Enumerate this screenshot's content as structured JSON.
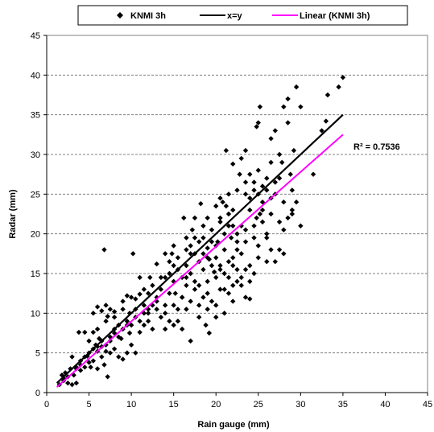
{
  "chart_data": {
    "type": "scatter",
    "xlabel": "Rain gauge (mm)",
    "ylabel": "Radar (mm)",
    "xlim": [
      0,
      45
    ],
    "ylim": [
      0,
      45
    ],
    "xticks": [
      "0",
      "5",
      "10",
      "15",
      "20",
      "25",
      "30",
      "35",
      "40",
      "45"
    ],
    "yticks": [
      "0",
      "5",
      "10",
      "15",
      "20",
      "25",
      "30",
      "35",
      "40",
      "45"
    ],
    "grid": "horizontal dashed",
    "legend_position": "top",
    "annotation": "R² = 0.7536",
    "colors": {
      "points": "#000000",
      "identity": "#000000",
      "fit": "#ff00ff"
    },
    "series": [
      {
        "name": "KNMI 3h",
        "kind": "scatter",
        "marker": "diamond",
        "points": [
          [
            1.5,
            1.0
          ],
          [
            2.0,
            1.5
          ],
          [
            2.5,
            1.2
          ],
          [
            3.0,
            1.0
          ],
          [
            3.2,
            2.2
          ],
          [
            2.8,
            3.0
          ],
          [
            3.5,
            1.2
          ],
          [
            2.2,
            2.5
          ],
          [
            3.0,
            4.5
          ],
          [
            3.5,
            3.2
          ],
          [
            4.0,
            3.5
          ],
          [
            4.5,
            3.2
          ],
          [
            4.0,
            2.8
          ],
          [
            5.0,
            3.8
          ],
          [
            4.8,
            4.6
          ],
          [
            5.5,
            4.0
          ],
          [
            5.2,
            3.2
          ],
          [
            3.8,
            7.6
          ],
          [
            4.5,
            7.6
          ],
          [
            5.5,
            7.6
          ],
          [
            6.0,
            3.0
          ],
          [
            6.5,
            4.5
          ],
          [
            6.0,
            5.2
          ],
          [
            7.0,
            5.2
          ],
          [
            7.5,
            5.0
          ],
          [
            7.2,
            2.0
          ],
          [
            6.8,
            3.5
          ],
          [
            6.2,
            6.8
          ],
          [
            6.5,
            5.8
          ],
          [
            5.8,
            6.0
          ],
          [
            8.0,
            5.5
          ],
          [
            8.5,
            4.5
          ],
          [
            9.0,
            4.2
          ],
          [
            8.8,
            6.8
          ],
          [
            9.5,
            5.0
          ],
          [
            10.0,
            6.0
          ],
          [
            9.8,
            7.5
          ],
          [
            10.5,
            5.0
          ],
          [
            11.0,
            7.6
          ],
          [
            7.5,
            7.0
          ],
          [
            8.0,
            7.5
          ],
          [
            8.5,
            8.5
          ],
          [
            5.5,
            10.0
          ],
          [
            6.0,
            10.8
          ],
          [
            6.5,
            10.3
          ],
          [
            7.0,
            11.0
          ],
          [
            7.5,
            10.5
          ],
          [
            8.0,
            10.2
          ],
          [
            7.2,
            9.6
          ],
          [
            6.8,
            18.0
          ],
          [
            9.0,
            11.5
          ],
          [
            9.5,
            12.2
          ],
          [
            10.0,
            12.0
          ],
          [
            9.8,
            10.0
          ],
          [
            10.5,
            11.8
          ],
          [
            11.0,
            12.4
          ],
          [
            10.2,
            17.5
          ],
          [
            11.5,
            11.0
          ],
          [
            12.0,
            10.5
          ],
          [
            12.5,
            11.0
          ],
          [
            13.0,
            12.0
          ],
          [
            13.5,
            13.0
          ],
          [
            12.2,
            14.5
          ],
          [
            13.0,
            16.2
          ],
          [
            14.0,
            14.5
          ],
          [
            14.5,
            15.0
          ],
          [
            15.0,
            14.0
          ],
          [
            14.8,
            17.5
          ],
          [
            15.5,
            15.5
          ],
          [
            16.0,
            14.5
          ],
          [
            16.5,
            13.5
          ],
          [
            15.2,
            12.5
          ],
          [
            16.0,
            12.0
          ],
          [
            16.5,
            16.0
          ],
          [
            16.2,
            22.0
          ],
          [
            17.0,
            18.5
          ],
          [
            17.5,
            17.5
          ],
          [
            18.0,
            16.5
          ],
          [
            17.2,
            20.5
          ],
          [
            18.5,
            19.5
          ],
          [
            17.5,
            22.0
          ],
          [
            18.2,
            23.8
          ],
          [
            19.0,
            18.2
          ],
          [
            19.5,
            20.5
          ],
          [
            20.0,
            17.0
          ],
          [
            20.5,
            16.0
          ],
          [
            19.2,
            16.8
          ],
          [
            19.8,
            15.2
          ],
          [
            20.2,
            19.0
          ],
          [
            21.0,
            20.0
          ],
          [
            20.5,
            22.0
          ],
          [
            20.8,
            24.0
          ],
          [
            21.2,
            23.5
          ],
          [
            21.5,
            22.5
          ],
          [
            22.0,
            21.0
          ],
          [
            21.8,
            19.5
          ],
          [
            22.5,
            18.0
          ],
          [
            22.0,
            17.0
          ],
          [
            21.5,
            16.5
          ],
          [
            22.5,
            15.5
          ],
          [
            23.0,
            17.5
          ],
          [
            21.2,
            30.5
          ],
          [
            22.0,
            28.8
          ],
          [
            22.8,
            27.5
          ],
          [
            23.0,
            29.5
          ],
          [
            23.5,
            30.5
          ],
          [
            24.0,
            27.5
          ],
          [
            24.5,
            26.5
          ],
          [
            23.5,
            25.0
          ],
          [
            24.0,
            23.0
          ],
          [
            24.8,
            22.0
          ],
          [
            25.0,
            25.0
          ],
          [
            25.5,
            24.0
          ],
          [
            26.0,
            25.5
          ],
          [
            25.2,
            22.5
          ],
          [
            26.5,
            24.5
          ],
          [
            27.0,
            26.5
          ],
          [
            27.5,
            27.0
          ],
          [
            26.0,
            20.0
          ],
          [
            25.0,
            18.5
          ],
          [
            26.5,
            18.0
          ],
          [
            27.0,
            16.5
          ],
          [
            27.5,
            21.5
          ],
          [
            28.0,
            20.5
          ],
          [
            28.5,
            22.0
          ],
          [
            29.0,
            23.0
          ],
          [
            27.5,
            18.0
          ],
          [
            28.0,
            17.5
          ],
          [
            24.8,
            33.5
          ],
          [
            25.0,
            34.0
          ],
          [
            25.2,
            36.0
          ],
          [
            26.5,
            32.0
          ],
          [
            27.0,
            33.0
          ],
          [
            27.5,
            30.0
          ],
          [
            28.0,
            36.0
          ],
          [
            28.5,
            37.0
          ],
          [
            29.5,
            38.5
          ],
          [
            30.0,
            36.0
          ],
          [
            28.5,
            34.0
          ],
          [
            29.2,
            30.5
          ],
          [
            27.8,
            29.0
          ],
          [
            28.8,
            27.5
          ],
          [
            31.5,
            27.5
          ],
          [
            32.5,
            33.0
          ],
          [
            33.0,
            34.2
          ],
          [
            33.2,
            37.5
          ],
          [
            34.5,
            38.5
          ],
          [
            35.0,
            39.7
          ],
          [
            30.0,
            21.0
          ],
          [
            29.0,
            22.5
          ],
          [
            12.0,
            9.0
          ],
          [
            12.5,
            8.0
          ],
          [
            13.5,
            9.5
          ],
          [
            14.0,
            8.0
          ],
          [
            14.5,
            9.0
          ],
          [
            15.0,
            8.5
          ],
          [
            15.5,
            9.0
          ],
          [
            16.0,
            8.0
          ],
          [
            17.0,
            6.5
          ],
          [
            16.5,
            10.5
          ],
          [
            15.5,
            10.5
          ],
          [
            18.0,
            9.5
          ],
          [
            18.5,
            12.0
          ],
          [
            19.0,
            12.5
          ],
          [
            19.5,
            11.5
          ],
          [
            18.8,
            8.5
          ],
          [
            19.2,
            7.5
          ],
          [
            20.0,
            9.5
          ],
          [
            21.0,
            10.0
          ],
          [
            21.5,
            12.5
          ],
          [
            22.0,
            11.5
          ],
          [
            20.5,
            13.0
          ],
          [
            21.5,
            14.5
          ],
          [
            22.5,
            14.0
          ],
          [
            23.0,
            13.5
          ],
          [
            23.5,
            12.0
          ],
          [
            24.0,
            11.8
          ],
          [
            23.5,
            15.5
          ],
          [
            24.5,
            15.0
          ],
          [
            24.0,
            14.0
          ],
          [
            17.5,
            13.0
          ],
          [
            18.0,
            13.5
          ],
          [
            19.0,
            14.0
          ],
          [
            20.5,
            15.5
          ],
          [
            21.0,
            15.0
          ],
          [
            22.0,
            16.0
          ],
          [
            19.5,
            16.0
          ],
          [
            20.0,
            14.5
          ],
          [
            18.5,
            15.5
          ],
          [
            17.0,
            15.0
          ],
          [
            16.5,
            14.5
          ],
          [
            17.5,
            14.0
          ],
          [
            18.5,
            17.5
          ],
          [
            19.0,
            17.0
          ],
          [
            20.0,
            18.5
          ],
          [
            21.0,
            18.0
          ],
          [
            22.5,
            19.0
          ],
          [
            23.0,
            21.0
          ],
          [
            22.0,
            23.0
          ],
          [
            23.5,
            20.5
          ],
          [
            24.5,
            21.0
          ],
          [
            24.0,
            24.5
          ],
          [
            25.5,
            26.0
          ],
          [
            26.0,
            27.0
          ],
          [
            25.0,
            28.0
          ],
          [
            26.5,
            29.0
          ],
          [
            27.0,
            25.0
          ],
          [
            28.0,
            24.0
          ],
          [
            29.0,
            25.5
          ],
          [
            29.5,
            24.0
          ],
          [
            26.5,
            22.5
          ],
          [
            25.5,
            21.5
          ],
          [
            24.5,
            19.5
          ],
          [
            23.5,
            19.0
          ],
          [
            22.5,
            20.0
          ],
          [
            21.5,
            21.0
          ],
          [
            20.5,
            21.5
          ],
          [
            19.5,
            19.0
          ],
          [
            18.0,
            19.0
          ],
          [
            17.0,
            17.5
          ],
          [
            16.5,
            18.0
          ],
          [
            15.5,
            17.0
          ],
          [
            15.0,
            16.0
          ],
          [
            14.5,
            16.5
          ],
          [
            13.5,
            14.5
          ],
          [
            12.5,
            13.5
          ],
          [
            12.0,
            12.5
          ],
          [
            11.5,
            13.0
          ],
          [
            11.0,
            14.5
          ],
          [
            13.0,
            11.5
          ],
          [
            14.0,
            11.0
          ],
          [
            14.5,
            12.5
          ],
          [
            10.5,
            9.5
          ],
          [
            11.0,
            9.0
          ],
          [
            11.5,
            8.5
          ],
          [
            10.0,
            8.5
          ],
          [
            9.5,
            9.0
          ],
          [
            9.0,
            8.0
          ],
          [
            8.5,
            7.0
          ],
          [
            8.0,
            8.0
          ],
          [
            7.5,
            6.5
          ],
          [
            7.0,
            6.0
          ],
          [
            6.5,
            6.5
          ],
          [
            6.0,
            5.8
          ],
          [
            5.5,
            5.5
          ],
          [
            5.0,
            5.0
          ],
          [
            4.5,
            4.5
          ],
          [
            4.0,
            4.0
          ],
          [
            3.5,
            3.0
          ],
          [
            2.5,
            2.0
          ],
          [
            2.0,
            1.8
          ],
          [
            1.8,
            2.2
          ],
          [
            5.0,
            6.5
          ],
          [
            6.0,
            8.0
          ],
          [
            7.0,
            9.0
          ],
          [
            8.0,
            9.5
          ],
          [
            9.0,
            10.5
          ],
          [
            9.5,
            8.5
          ],
          [
            10.5,
            10.5
          ],
          [
            11.5,
            10.0
          ],
          [
            12.0,
            10.0
          ],
          [
            13.0,
            10.5
          ],
          [
            14.0,
            10.0
          ],
          [
            15.0,
            11.0
          ],
          [
            16.0,
            12.0
          ],
          [
            17.0,
            11.5
          ],
          [
            18.0,
            11.0
          ],
          [
            19.0,
            10.5
          ],
          [
            20.0,
            11.0
          ],
          [
            21.0,
            13.0
          ],
          [
            22.0,
            13.5
          ],
          [
            23.0,
            14.5
          ],
          [
            24.0,
            16.0
          ],
          [
            25.0,
            17.0
          ],
          [
            26.0,
            16.5
          ],
          [
            26.0,
            19.5
          ],
          [
            25.5,
            23.0
          ],
          [
            24.5,
            25.5
          ],
          [
            23.5,
            26.5
          ],
          [
            22.5,
            25.5
          ],
          [
            21.5,
            25.0
          ],
          [
            20.5,
            24.5
          ],
          [
            20.0,
            23.5
          ],
          [
            19.0,
            22.0
          ],
          [
            18.5,
            21.0
          ],
          [
            17.5,
            19.5
          ],
          [
            16.5,
            19.5
          ],
          [
            15.0,
            18.5
          ],
          [
            14.0,
            17.5
          ]
        ]
      },
      {
        "name": "x=y",
        "kind": "line",
        "x": [
          1.2,
          35.0
        ],
        "y": [
          1.2,
          35.0
        ]
      },
      {
        "name": "Linear (KNMI 3h)",
        "kind": "line",
        "x": [
          1.2,
          35.0
        ],
        "y": [
          0.7,
          32.5
        ]
      }
    ]
  }
}
